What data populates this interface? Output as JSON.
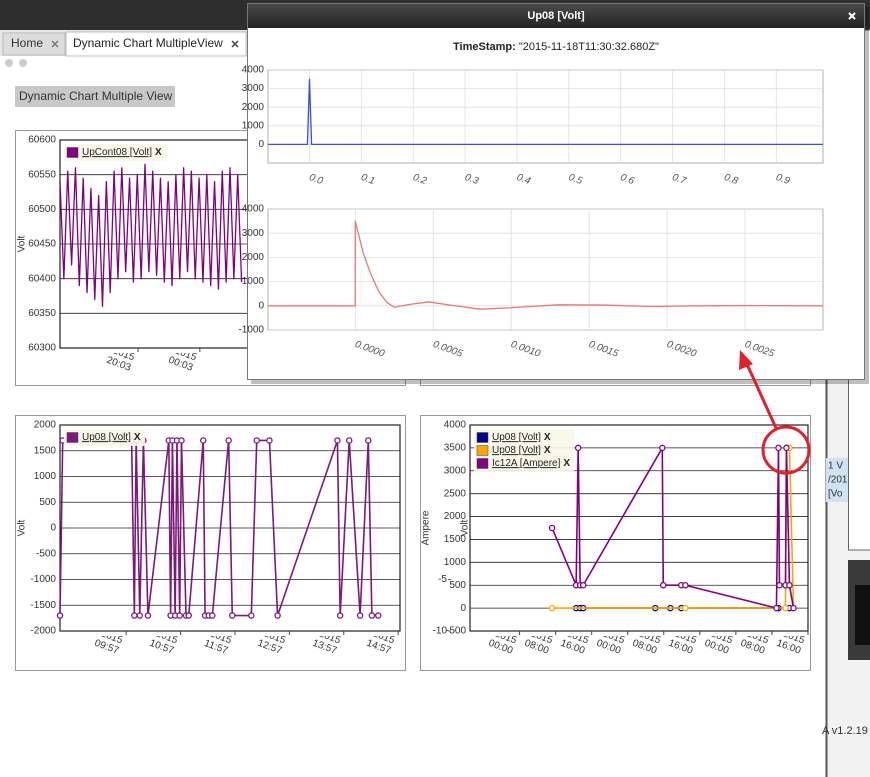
{
  "tabs": [
    "Home",
    "Dynamic Chart MultipleView"
  ],
  "page_button": "Dynamic Chart Multiple View",
  "popup": {
    "title": "Up08 [Volt]",
    "timestamp_label": "TimeStamp:",
    "timestamp_value": "\"2015-11-18T11:30:32.680Z\""
  },
  "side_panel": {
    "lines": [
      "1 V",
      "/201",
      "[Vo"
    ]
  },
  "version": "A v1.2.19",
  "chart_data": [
    {
      "type": "line",
      "y_label": "Volt",
      "grid": true,
      "legend": "upper left",
      "legend_close": "X",
      "xlim": [
        "16/11/2015 15:00",
        "17/11/2015 13:00"
      ],
      "xticks": [
        "16/11/2015 20:03",
        "17/11/2015 00:03"
      ],
      "ylim": [
        60300,
        60600
      ],
      "yticks": [
        60300,
        60350,
        60400,
        60450,
        60500,
        60550,
        60600
      ],
      "series": [
        {
          "name": "UpCont08 [Volt]",
          "color": "#800080",
          "x": [
            "16/11/2015 15:00",
            "16/11/2015 15:15",
            "16/11/2015 15:30",
            "16/11/2015 15:45",
            "16/11/2015 16:00",
            "16/11/2015 16:15",
            "16/11/2015 16:30",
            "16/11/2015 16:45",
            "16/11/2015 17:00",
            "16/11/2015 17:15",
            "16/11/2015 17:30",
            "16/11/2015 17:45",
            "16/11/2015 18:00",
            "16/11/2015 18:15",
            "16/11/2015 18:30",
            "16/11/2015 18:45",
            "16/11/2015 19:00",
            "16/11/2015 19:15",
            "16/11/2015 19:30",
            "16/11/2015 19:45",
            "16/11/2015 20:00",
            "16/11/2015 20:15",
            "16/11/2015 20:30",
            "16/11/2015 20:45",
            "16/11/2015 21:00",
            "16/11/2015 21:15",
            "16/11/2015 21:30",
            "16/11/2015 21:45",
            "16/11/2015 22:00",
            "16/11/2015 22:15",
            "16/11/2015 22:30",
            "16/11/2015 22:45",
            "16/11/2015 23:00",
            "16/11/2015 23:15",
            "16/11/2015 23:30",
            "16/11/2015 23:45",
            "17/11/2015 00:00",
            "17/11/2015 00:15",
            "17/11/2015 00:30",
            "17/11/2015 00:45",
            "17/11/2015 01:00",
            "17/11/2015 01:15",
            "17/11/2015 01:30",
            "17/11/2015 01:45",
            "17/11/2015 02:00",
            "17/11/2015 02:15",
            "17/11/2015 02:30",
            "17/11/2015 02:45"
          ],
          "values": [
            60540,
            60400,
            60555,
            60420,
            60560,
            60390,
            60545,
            60380,
            60530,
            60370,
            60520,
            60360,
            60540,
            60380,
            60555,
            60400,
            60560,
            60410,
            60545,
            60395,
            60550,
            60400,
            60565,
            60410,
            60555,
            60405,
            60545,
            60395,
            60540,
            60390,
            60550,
            60400,
            60560,
            60410,
            60555,
            60400,
            60545,
            60395,
            60550,
            60390,
            60540,
            60385,
            60555,
            60395,
            60560,
            60400,
            60550,
            60395
          ]
        }
      ]
    },
    {
      "type": "line",
      "grid": true,
      "x_grid": true,
      "xlim": [
        -0.08,
        0.99
      ],
      "xticks": [
        {
          "value": 0,
          "label": "0.0"
        },
        0.1,
        0.2,
        0.3,
        0.4,
        0.5,
        0.6,
        0.7,
        0.8,
        0.9
      ],
      "ylim": [
        -1000,
        4000
      ],
      "yticks": [
        0,
        1000,
        2000,
        3000,
        4000
      ],
      "series": [
        {
          "color": "#3a4fd8",
          "x": [
            -0.08,
            -0.004,
            0,
            0.004,
            0.99
          ],
          "values": [
            0,
            0,
            3500,
            0,
            0
          ]
        }
      ]
    },
    {
      "type": "line",
      "grid": true,
      "x_grid": true,
      "xlim": [
        -0.00056,
        0.003
      ],
      "xticks": [
        {
          "value": 0,
          "label": "0.0000"
        },
        {
          "value": 0.0005,
          "label": "0.0005"
        },
        {
          "value": 0.001,
          "label": "0.0010"
        },
        {
          "value": 0.0015,
          "label": "0.0015"
        },
        {
          "value": 0.002,
          "label": "0.0020"
        },
        {
          "value": 0.0025,
          "label": "0.0025"
        }
      ],
      "ylim": [
        -1000,
        4000
      ],
      "yticks": [
        -1000,
        0,
        1000,
        2000,
        3000,
        4000
      ],
      "series": [
        {
          "color": "#e87878",
          "x": [
            -0.00056,
            0,
            0,
            5e-05,
            0.0001,
            0.00015,
            0.0002,
            0.00025,
            0.00035,
            0.00047,
            0.0006,
            0.0008,
            0.001,
            0.0013,
            0.0016,
            0.0019,
            0.0022,
            0.0025,
            0.003
          ],
          "values": [
            0,
            0,
            3500,
            2200,
            1300,
            600,
            150,
            -60,
            60,
            160,
            40,
            -140,
            -80,
            40,
            30,
            -30,
            0,
            10,
            0
          ]
        }
      ]
    },
    {
      "type": "line",
      "y_label": "Volt",
      "grid": true,
      "markers": true,
      "legend": "upper left",
      "legend_close": "X",
      "xlim": [
        "17/11/2015 08:44",
        "17/11/2015 14:59"
      ],
      "xticks": [
        "17/11/2015 09:57",
        "17/11/2015 10:57",
        "17/11/2015 11:57",
        "17/11/2015 12:57",
        "17/11/2015 13:57",
        "17/11/2015 14:57"
      ],
      "ylim": [
        -2000,
        2000
      ],
      "yticks": [
        -2000,
        -1500,
        -1000,
        -500,
        0,
        500,
        1000,
        1500,
        2000
      ],
      "series": [
        {
          "name": "Up08 [Volt]",
          "color": "#7b1a7b",
          "x": [
            "17/11/2015 08:44",
            "17/11/2015 08:47",
            "17/11/2015 10:03",
            "17/11/2015 10:06",
            "17/11/2015 10:08",
            "17/11/2015 10:12",
            "17/11/2015 10:16",
            "17/11/2015 10:21",
            "17/11/2015 10:44",
            "17/11/2015 10:46",
            "17/11/2015 10:48",
            "17/11/2015 10:51",
            "17/11/2015 10:53",
            "17/11/2015 10:56",
            "17/11/2015 10:58",
            "17/11/2015 11:03",
            "17/11/2015 11:06",
            "17/11/2015 11:22",
            "17/11/2015 11:24",
            "17/11/2015 11:28",
            "17/11/2015 11:32",
            "17/11/2015 11:50",
            "17/11/2015 11:54",
            "17/11/2015 12:15",
            "17/11/2015 12:21",
            "17/11/2015 12:35",
            "17/11/2015 12:44",
            "17/11/2015 13:50",
            "17/11/2015 13:53",
            "17/11/2015 14:03",
            "17/11/2015 14:15",
            "17/11/2015 14:24",
            "17/11/2015 14:28",
            "17/11/2015 14:35"
          ],
          "values": [
            -1700,
            1700,
            1700,
            -1700,
            1700,
            -1700,
            1700,
            -1700,
            1700,
            -1700,
            1700,
            -1700,
            1700,
            -1700,
            1700,
            -1700,
            -1700,
            1700,
            -1700,
            -1700,
            -1700,
            1700,
            -1700,
            -1700,
            1700,
            1700,
            -1700,
            1700,
            -1700,
            1700,
            -1700,
            1700,
            -1700,
            -1700
          ]
        }
      ]
    },
    {
      "type": "line",
      "y_label": "Volt",
      "y2_label": "Ampere",
      "grid": true,
      "markers": true,
      "legend": "upper left",
      "legend_close": "X",
      "xlim": [
        "15/11/2015 13:00",
        "18/11/2015 16:00"
      ],
      "xticks": [
        "16/11/2015 00:00",
        "16/11/2015 08:00",
        "16/11/2015 16:00",
        "17/11/2015 00:00",
        "17/11/2015 08:00",
        "17/11/2015 16:00",
        "18/11/2015 00:00",
        "18/11/2015 08:00",
        "18/11/2015 16:00"
      ],
      "ylim": [
        -500,
        4000
      ],
      "yticks": [
        -500,
        0,
        500,
        1000,
        1500,
        2000,
        2500,
        3000,
        3500,
        4000
      ],
      "y2lim": [
        -10,
        10
      ],
      "y2ticks": [
        -10,
        -5
      ],
      "series": [
        {
          "name": "Up08 [Volt]",
          "color": "#00008b",
          "x": [
            "16/11/2015 12:33",
            "16/11/2015 13:27",
            "16/11/2015 14:07",
            "17/11/2015 06:07",
            "17/11/2015 09:27",
            "17/11/2015 11:53",
            "18/11/2015 09:27",
            "18/11/2015 11:53"
          ],
          "values": [
            0,
            0,
            0,
            0,
            0,
            0,
            0,
            0
          ]
        },
        {
          "name": "Up08 [Volt]",
          "color": "#ffa500",
          "x": [
            "16/11/2015 07:13",
            "17/11/2015 12:47",
            "18/11/2015 11:00",
            "18/11/2015 11:13",
            "18/11/2015 11:53",
            "18/11/2015 12:47"
          ],
          "values": [
            0,
            0,
            0,
            3500,
            3500,
            0
          ]
        },
        {
          "name": "Ic12A [Ampere]",
          "color": "#800080",
          "x": [
            "16/11/2015 07:13",
            "16/11/2015 12:33",
            "16/11/2015 13:00",
            "16/11/2015 13:27",
            "16/11/2015 14:07",
            "17/11/2015 07:40",
            "17/11/2015 07:53",
            "17/11/2015 11:53",
            "17/11/2015 12:47",
            "18/11/2015 09:00",
            "18/11/2015 09:27",
            "18/11/2015 09:40",
            "18/11/2015 11:00",
            "18/11/2015 11:13",
            "18/11/2015 11:53",
            "18/11/2015 12:47"
          ],
          "values": [
            1750,
            500,
            3500,
            500,
            500,
            3500,
            500,
            500,
            500,
            0,
            3500,
            500,
            500,
            3500,
            500,
            0
          ]
        }
      ]
    }
  ]
}
